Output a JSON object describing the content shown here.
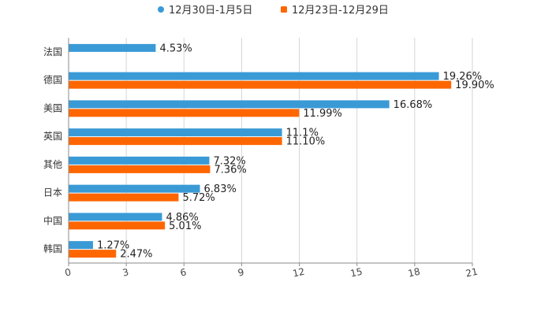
{
  "chart_data": {
    "type": "bar",
    "orientation": "horizontal",
    "categories": [
      "法国",
      "德国",
      "美国",
      "英国",
      "其他",
      "日本",
      "中国",
      "韩国"
    ],
    "series": [
      {
        "name": "12月30日-1月5日",
        "color": "#3a9ad6",
        "values": [
          4.53,
          19.26,
          16.68,
          11.1,
          7.32,
          6.83,
          4.86,
          1.27
        ],
        "labels": [
          "4.53%",
          "19.26%",
          "16.68%",
          "11.1%",
          "7.32%",
          "6.83%",
          "4.86%",
          "1.27%"
        ]
      },
      {
        "name": "12月23日-12月29日",
        "color": "#ff6600",
        "values": [
          null,
          19.9,
          11.99,
          11.1,
          7.36,
          5.72,
          5.01,
          2.47
        ],
        "labels": [
          null,
          "19.90%",
          "11.99%",
          "11.10%",
          "7.36%",
          "5.72%",
          "5.01%",
          "2.47%"
        ]
      }
    ],
    "xlim": [
      0,
      21
    ],
    "xticks": [
      "0",
      "3",
      "6",
      "9",
      "12",
      "15",
      "18",
      "21"
    ],
    "grid": true,
    "legend_position": "top-center",
    "title": "",
    "xlabel": "",
    "ylabel": ""
  }
}
